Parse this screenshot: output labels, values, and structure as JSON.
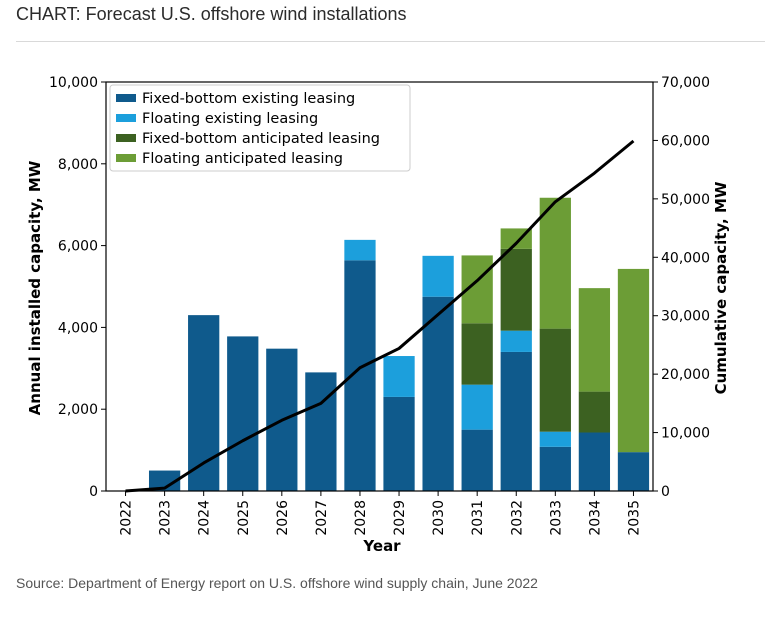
{
  "header": {
    "title": "CHART: Forecast U.S. offshore wind installations"
  },
  "footer": {
    "source": "Source: Department of Energy report on U.S. offshore wind supply chain, June 2022"
  },
  "chart_data": {
    "type": "bar",
    "stacked": true,
    "categories": [
      "2022",
      "2023",
      "2024",
      "2025",
      "2026",
      "2027",
      "2028",
      "2029",
      "2030",
      "2031",
      "2032",
      "2033",
      "2034",
      "2035"
    ],
    "series": [
      {
        "name": "Fixed-bottom existing leasing",
        "color": "#0f5a8c",
        "values": [
          0,
          500,
          4300,
          3780,
          3480,
          2900,
          5640,
          2300,
          4750,
          1500,
          3400,
          1080,
          1430,
          950
        ]
      },
      {
        "name": "Floating existing leasing",
        "color": "#1c9fdc",
        "values": [
          0,
          0,
          0,
          0,
          0,
          0,
          500,
          1000,
          1000,
          1100,
          520,
          370,
          0,
          0
        ]
      },
      {
        "name": "Fixed-bottom anticipated leasing",
        "color": "#3c6121",
        "values": [
          0,
          0,
          0,
          0,
          0,
          0,
          0,
          0,
          0,
          1500,
          2000,
          2520,
          1000,
          0
        ]
      },
      {
        "name": "Floating anticipated leasing",
        "color": "#6c9d36",
        "values": [
          0,
          0,
          0,
          0,
          0,
          0,
          0,
          0,
          0,
          1660,
          500,
          3200,
          2530,
          4480
        ]
      }
    ],
    "line": {
      "name": "Cumulative capacity",
      "axis": "right",
      "color": "#000000",
      "values": [
        0,
        500,
        4800,
        8600,
        12100,
        15000,
        21100,
        24400,
        30200,
        36000,
        42400,
        49500,
        54400,
        59900
      ]
    },
    "xlabel": "Year",
    "ylabel": "Annual installed capacity, MW",
    "ylabel_right": "Cumulative capacity, MW",
    "ylim": [
      0,
      10000
    ],
    "ylim_right": [
      0,
      70000
    ],
    "yticks": [
      "0",
      "2,000",
      "4,000",
      "6,000",
      "8,000",
      "10,000"
    ],
    "yticks_right": [
      "0",
      "10,000",
      "20,000",
      "30,000",
      "40,000",
      "50,000",
      "60,000",
      "70,000"
    ],
    "legend_position": "top-left",
    "grid": false
  }
}
